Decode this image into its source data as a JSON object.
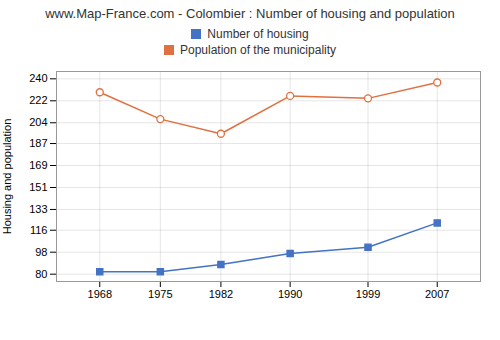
{
  "chart_data": {
    "type": "line",
    "title": "www.Map-France.com - Colombier : Number of housing and population",
    "y_label": "Housing and population",
    "x": [
      1968,
      1975,
      1982,
      1990,
      1999,
      2007
    ],
    "series": [
      {
        "name": "Number of housing",
        "color": "#4472c4",
        "marker": "square",
        "values": [
          82,
          82,
          88,
          97,
          102,
          122
        ]
      },
      {
        "name": "Population of the municipality",
        "color": "#e07040",
        "marker": "circle",
        "values": [
          229,
          207,
          195,
          226,
          224,
          237
        ]
      }
    ],
    "xlim": [
      1963,
      2012
    ],
    "xticks": [
      1968,
      1975,
      1982,
      1990,
      1999,
      2007
    ],
    "ylim": [
      74,
      246
    ],
    "yticks": [
      80,
      98,
      116,
      133,
      151,
      169,
      187,
      204,
      222,
      240
    ],
    "grid": true,
    "legend": "top"
  }
}
